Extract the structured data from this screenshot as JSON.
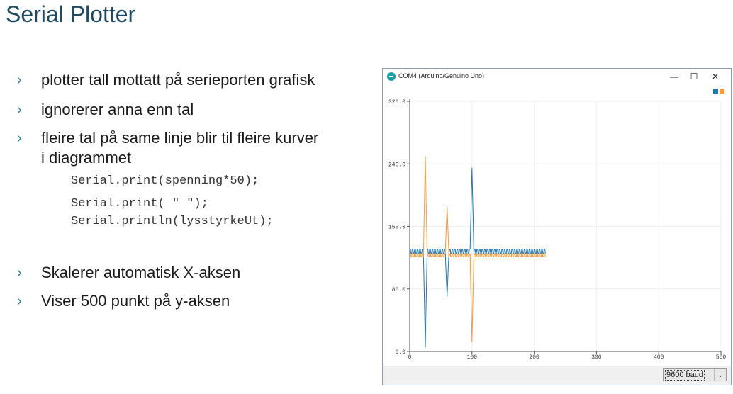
{
  "slide": {
    "title": "Serial Plotter",
    "bullets": [
      "plotter tall mottatt på serieporten grafisk",
      "ignorerer anna enn tal",
      "fleire tal på same linje blir til fleire kurver",
      "i diagrammet"
    ],
    "bullets_bottom": [
      "Skalerer automatisk X-aksen",
      "Viser 500 punkt på y-aksen"
    ],
    "code": [
      "Serial.print(spenning*50);",
      "Serial.print( \" \");",
      "Serial.println(lysstyrkeUt);"
    ],
    "bullet_mark": "›"
  },
  "window": {
    "title": "COM4 (Arduino/Genuino Uno)",
    "icon": "arduino-icon",
    "minimize": "—",
    "maximize": "☐",
    "close": "✕",
    "baud": "9600 baud",
    "baud_arrow": "⌄"
  },
  "chart_data": {
    "type": "line",
    "xlim": [
      0,
      500
    ],
    "ylim": [
      0,
      320
    ],
    "x_ticks": [
      "0",
      "100",
      "200",
      "300",
      "400",
      "500"
    ],
    "y_ticks": [
      "0.0",
      "80.0",
      "160.0",
      "240.0",
      "320.0"
    ],
    "grid": true,
    "legend": "top-right",
    "series": [
      {
        "color": "#1f77b4",
        "spikes": [
          [
            25,
            5
          ],
          [
            60,
            70
          ],
          [
            100,
            235
          ]
        ],
        "baseline": 128,
        "amplitude": 3,
        "x_end": 218
      },
      {
        "color": "#ff9933",
        "spikes": [
          [
            25,
            250
          ],
          [
            60,
            186
          ],
          [
            100,
            12
          ]
        ],
        "baseline": 123,
        "amplitude": 2,
        "x_end": 218
      }
    ]
  }
}
